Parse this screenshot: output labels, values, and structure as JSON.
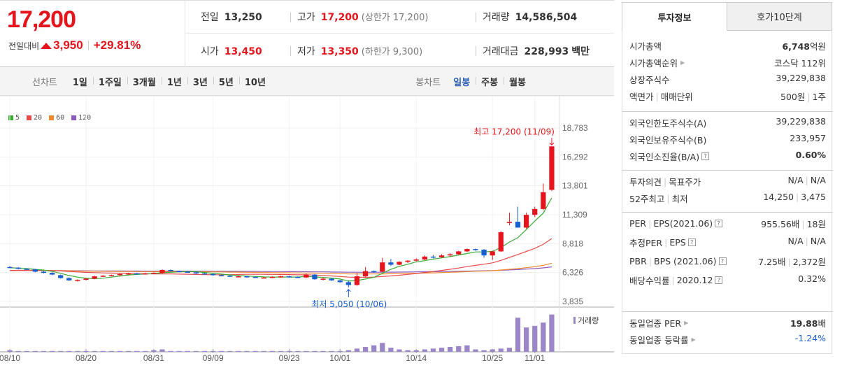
{
  "quote": {
    "price": "17,200",
    "change_label": "전일대비",
    "change_value": "3,950",
    "change_pct": "+29.81%",
    "prev_close_label": "전일",
    "prev_close": "13,250",
    "high_label": "고가",
    "high": "17,200",
    "upper_limit": "(상한가 17,200)",
    "volume_label": "거래량",
    "volume": "14,586,504",
    "open_label": "시가",
    "open": "13,450",
    "low_label": "저가",
    "low": "13,350",
    "lower_limit": "(하한가 9,300)",
    "amount_label": "거래대금",
    "amount": "228,993",
    "amount_unit": "백만"
  },
  "period_bar": {
    "line_chart_label": "선차트",
    "line_periods": [
      "1일",
      "1주일",
      "3개월",
      "1년",
      "3년",
      "5년",
      "10년"
    ],
    "candle_chart_label": "봉차트",
    "candle_periods": [
      "일봉",
      "주봉",
      "월봉"
    ],
    "active_candle": "일봉",
    "active_color": "#2a5fb4"
  },
  "chart_data": {
    "type": "candlestick",
    "legend": [
      {
        "name": "5",
        "color": "#3aaa35"
      },
      {
        "name": "20",
        "color": "#e84a4a"
      },
      {
        "name": "60",
        "color": "#f08a2c"
      },
      {
        "name": "120",
        "color": "#8b5bbf"
      }
    ],
    "y_ticks": [
      "18,783",
      "16,292",
      "13,801",
      "11,309",
      "8,818",
      "6,326",
      "3,835"
    ],
    "y_tick_values": [
      18783,
      16292,
      13801,
      11309,
      8818,
      6326,
      3835
    ],
    "x_ticks": [
      "08/10",
      "08/20",
      "08/31",
      "09/09",
      "09/23",
      "10/01",
      "10/14",
      "10/25",
      "11/01"
    ],
    "max_annotation": "최고 17,200 (11/09)",
    "min_annotation": "최저 5,050 (10/06)",
    "volume_label": "거래량",
    "up_color": "#e4151c",
    "down_color": "#1a5fd0",
    "volume_color": "#9b86c8",
    "candles": [
      [
        6800,
        6900,
        6700,
        6750
      ],
      [
        6750,
        6800,
        6600,
        6650
      ],
      [
        6650,
        6700,
        6550,
        6600
      ],
      [
        6600,
        6650,
        6350,
        6400
      ],
      [
        6400,
        6450,
        6250,
        6300
      ],
      [
        6300,
        6350,
        6100,
        6150
      ],
      [
        6100,
        6150,
        5800,
        5850
      ],
      [
        5850,
        5900,
        5600,
        5650
      ],
      [
        5650,
        5750,
        5550,
        5700
      ],
      [
        5700,
        5850,
        5650,
        5800
      ],
      [
        5800,
        6050,
        5750,
        6000
      ],
      [
        6000,
        6100,
        5950,
        6050
      ],
      [
        6050,
        6150,
        6000,
        6100
      ],
      [
        6100,
        6250,
        6050,
        6200
      ],
      [
        6200,
        6300,
        6150,
        6250
      ],
      [
        6250,
        6300,
        6150,
        6200
      ],
      [
        6200,
        6300,
        6150,
        6250
      ],
      [
        6250,
        6350,
        6200,
        6300
      ],
      [
        6300,
        6600,
        6250,
        6550
      ],
      [
        6550,
        6600,
        6400,
        6450
      ],
      [
        6450,
        6500,
        6350,
        6400
      ],
      [
        6400,
        6450,
        6300,
        6350
      ],
      [
        6350,
        6400,
        6200,
        6250
      ],
      [
        6250,
        6300,
        6150,
        6200
      ],
      [
        6200,
        6250,
        6050,
        6100
      ],
      [
        6100,
        6150,
        6000,
        6050
      ],
      [
        6050,
        6100,
        5950,
        6000
      ],
      [
        6000,
        6050,
        5950,
        6000
      ],
      [
        6000,
        6050,
        5900,
        5950
      ],
      [
        5950,
        6000,
        5850,
        5900
      ],
      [
        5900,
        5950,
        5850,
        5900
      ],
      [
        5900,
        6000,
        5850,
        5950
      ],
      [
        5950,
        6050,
        5900,
        6000
      ],
      [
        6000,
        6050,
        5900,
        5950
      ],
      [
        5950,
        6000,
        5850,
        5900
      ],
      [
        5900,
        6250,
        5850,
        6150
      ],
      [
        6150,
        6200,
        5700,
        5750
      ],
      [
        5750,
        5850,
        5650,
        5800
      ],
      [
        5800,
        5850,
        5600,
        5650
      ],
      [
        5650,
        5700,
        5450,
        5500
      ],
      [
        5500,
        5650,
        5050,
        5250
      ],
      [
        5250,
        6300,
        5200,
        6000
      ],
      [
        6000,
        6800,
        5950,
        6450
      ],
      [
        6450,
        6500,
        6300,
        6400
      ],
      [
        6400,
        7600,
        6350,
        7200
      ],
      [
        7200,
        7500,
        6900,
        7000
      ],
      [
        7000,
        7300,
        6950,
        7250
      ],
      [
        7250,
        7400,
        7150,
        7350
      ],
      [
        7350,
        7550,
        7300,
        7450
      ],
      [
        7450,
        7800,
        7400,
        7700
      ],
      [
        7700,
        7850,
        7550,
        7650
      ],
      [
        7650,
        7900,
        7600,
        7800
      ],
      [
        7800,
        8000,
        7700,
        7900
      ],
      [
        7900,
        8200,
        7850,
        8150
      ],
      [
        8150,
        8400,
        8100,
        8350
      ],
      [
        8350,
        8400,
        8200,
        8300
      ],
      [
        8300,
        8350,
        7600,
        7800
      ],
      [
        7800,
        8200,
        7400,
        8150
      ],
      [
        8150,
        9900,
        8100,
        9800
      ],
      [
        10600,
        11500,
        10400,
        10700
      ],
      [
        10700,
        12000,
        10200,
        10200
      ],
      [
        10200,
        11500,
        10100,
        11300
      ],
      [
        11300,
        12000,
        11100,
        11800
      ],
      [
        11800,
        14000,
        11700,
        13250
      ],
      [
        13450,
        17200,
        13350,
        17200
      ]
    ],
    "volumes": [
      2,
      1,
      1,
      1,
      1,
      1,
      1,
      1,
      1,
      1,
      1,
      1,
      1,
      1,
      1,
      1,
      1,
      2,
      3,
      1,
      1,
      1,
      1,
      1,
      1,
      1,
      1,
      1,
      1,
      1,
      1,
      1,
      1,
      1,
      1,
      1,
      1,
      1,
      1,
      1,
      2,
      4,
      6,
      8,
      11,
      5,
      3,
      2,
      2,
      3,
      4,
      5,
      6,
      7,
      8,
      3,
      2,
      3,
      4,
      5,
      42,
      30,
      32,
      36,
      46
    ]
  },
  "right_panel": {
    "tabs": [
      "투자정보",
      "호가10단계"
    ],
    "sec1": [
      {
        "label": "시가총액",
        "value": "6,748",
        "unit": "억원",
        "bold": true
      },
      {
        "label": "시가총액순위",
        "value": "코스닥 112위",
        "arrow": true
      },
      {
        "label": "상장주식수",
        "value": "39,229,838"
      },
      {
        "label": "액면가",
        "label2": "매매단위",
        "value": "500원",
        "value2": "1주"
      }
    ],
    "sec2": [
      {
        "label": "외국인한도주식수(A)",
        "value": "39,229,838"
      },
      {
        "label": "외국인보유주식수(B)",
        "value": "233,957"
      },
      {
        "label": "외국인소진율(B/A)",
        "value": "0.60%",
        "bold": true,
        "help": true
      }
    ],
    "sec3": [
      {
        "label": "투자의견",
        "label2": "목표주가",
        "value": "N/A",
        "value2": "N/A"
      },
      {
        "label": "52주최고",
        "label2": "최저",
        "value": "14,250",
        "value2": "3,475"
      }
    ],
    "sec4": [
      {
        "label": "PER",
        "label2": "EPS(2021.06)",
        "value": "955.56배",
        "value2": "18원",
        "help": true
      },
      {
        "label": "추정PER",
        "label2": "EPS",
        "value": "N/A",
        "value2": "N/A",
        "help": true
      },
      {
        "label": "PBR",
        "label2": "BPS (2021.06)",
        "value": "7.25배",
        "value2": "2,372원",
        "help": true
      },
      {
        "label": "배당수익률",
        "label2": "2020.12",
        "value": "0.32%",
        "help": true
      }
    ],
    "sec5": [
      {
        "label": "동일업종 PER",
        "value": "19.88",
        "unit": "배",
        "bold": true,
        "arrow": true
      },
      {
        "label": "동일업종 등락률",
        "value": "-1.24%",
        "arrow": true,
        "neg": true
      }
    ]
  }
}
